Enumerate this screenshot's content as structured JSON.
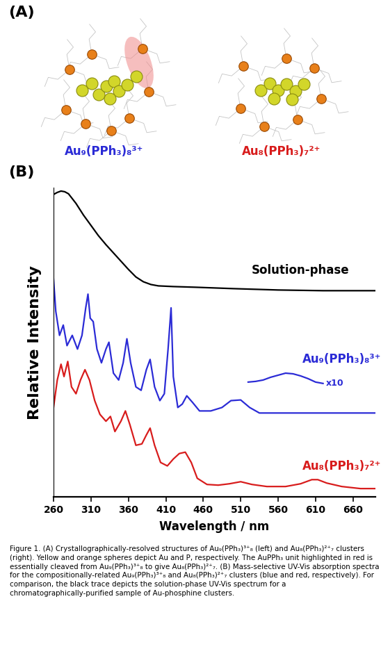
{
  "panel_a": {
    "label": "(A)",
    "structures": [
      {
        "label": "Au₉(PPh₃)₈³⁺",
        "color": "#2b2bd6"
      },
      {
        "label": "Au₈(PPh₃)₇²⁺",
        "color": "#d81c1c"
      }
    ]
  },
  "panel_b": {
    "label": "(B)"
  },
  "chart_data": {
    "type": "line",
    "xlabel": "Wavelength / nm",
    "ylabel": "Relative Intensity",
    "xlim": [
      260,
      690
    ],
    "ylim": [
      0,
      450
    ],
    "xticks": [
      260,
      310,
      360,
      410,
      460,
      510,
      560,
      610,
      660
    ],
    "tick_labels": "x",
    "series": [
      {
        "name": "Solution-phase",
        "color": "#000000",
        "x": [
          260,
          265,
          270,
          275,
          280,
          290,
          300,
          310,
          320,
          330,
          340,
          350,
          360,
          370,
          380,
          390,
          400,
          420,
          450,
          500,
          560,
          620,
          690
        ],
        "values": [
          440,
          443,
          445,
          444,
          441,
          427,
          410,
          395,
          380,
          367,
          355,
          343,
          331,
          320,
          313,
          309,
          307,
          306,
          305,
          303,
          301,
          300,
          300
        ]
      },
      {
        "name": "Au₉(PPh₃)₈³⁺",
        "color": "#2b2bd6",
        "x": [
          260,
          263,
          268,
          273,
          278,
          285,
          292,
          298,
          303,
          306,
          309,
          313,
          318,
          324,
          330,
          334,
          340,
          347,
          353,
          358,
          363,
          370,
          377,
          384,
          389,
          395,
          402,
          408,
          413,
          417,
          420,
          426,
          432,
          438,
          446,
          455,
          470,
          485,
          497,
          510,
          522,
          535,
          560,
          600,
          690
        ],
        "values": [
          317,
          270,
          235,
          250,
          220,
          235,
          215,
          235,
          275,
          295,
          260,
          255,
          215,
          195,
          215,
          225,
          180,
          170,
          195,
          230,
          195,
          160,
          155,
          185,
          200,
          160,
          140,
          150,
          215,
          275,
          175,
          130,
          135,
          147,
          137,
          125,
          125,
          130,
          140,
          141,
          130,
          122,
          122,
          122,
          122
        ]
      },
      {
        "name": "x10",
        "color": "#2b2bd6",
        "x": [
          520,
          530,
          540,
          550,
          560,
          570,
          580,
          590,
          600,
          610,
          620
        ],
        "values": [
          167,
          168,
          170,
          174,
          177,
          180,
          179,
          176,
          172,
          167,
          165
        ]
      },
      {
        "name": "Au₈(PPh₃)₇²⁺",
        "color": "#d81c1c",
        "x": [
          260,
          265,
          270,
          274,
          279,
          284,
          290,
          296,
          302,
          308,
          315,
          322,
          330,
          336,
          342,
          350,
          356,
          362,
          370,
          378,
          384,
          389,
          395,
          403,
          412,
          420,
          428,
          436,
          444,
          452,
          465,
          480,
          495,
          510,
          525,
          545,
          570,
          590,
          605,
          613,
          625,
          645,
          670,
          690
        ],
        "values": [
          130,
          170,
          193,
          175,
          197,
          160,
          150,
          170,
          185,
          170,
          140,
          120,
          110,
          117,
          95,
          110,
          125,
          105,
          75,
          77,
          90,
          100,
          75,
          50,
          45,
          55,
          63,
          65,
          50,
          27,
          18,
          17,
          19,
          22,
          18,
          15,
          15,
          19,
          25,
          25,
          20,
          15,
          12,
          12
        ]
      }
    ]
  },
  "caption": "Figure 1. (A) Crystallographically-resolved structures of Au₉(PPh₃)³⁺₈ (left) and Au₈(PPh₃)²⁺₇ clusters (right). Yellow and orange spheres depict Au and P, respectively. The AuPPh₃ unit highlighted in red is essentially cleaved from Au₉(PPh₃)³⁺₈ to give Au₈(PPh₃)²⁺₇. (B) Mass-selective UV-Vis absorption spectra for the compositionally-related Au₉(PPh₃)³⁺₈ and Au₈(PPh₃)²⁺₇ clusters (blue and red, respectively). For comparison, the black trace depicts the solution-phase UV-Vis spectrum for a chromatographically-purified sample of Au-phosphine clusters."
}
